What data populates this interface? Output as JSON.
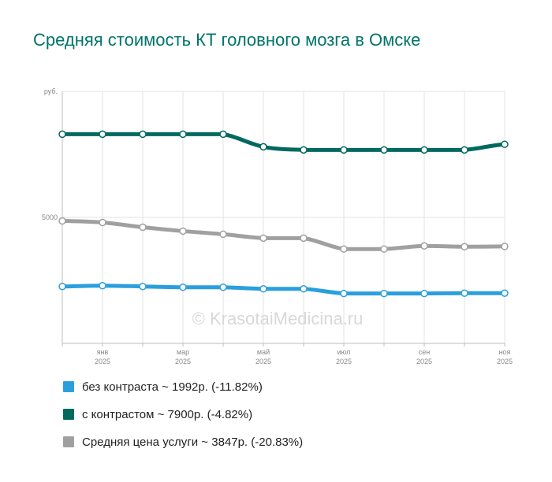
{
  "title": "Средняя стоимость КТ головного мозга в Омске",
  "watermark": "© KrasotaiMedicina.ru",
  "chart_data": {
    "type": "line",
    "ylabel": "руб.",
    "ylim": [
      0,
      10000
    ],
    "yticks": [
      {
        "value": 5000,
        "label": "5000"
      }
    ],
    "grid": true,
    "legend_position": "bottom",
    "x": [
      "дек 2024",
      "янв 2025",
      "фев 2025",
      "мар 2025",
      "апр 2025",
      "май 2025",
      "июн 2025",
      "июл 2025",
      "авг 2025",
      "сен 2025",
      "окт 2025",
      "ноя 2025"
    ],
    "xtick_labels": [
      {
        "index": 1,
        "month": "янв",
        "year": "2025"
      },
      {
        "index": 3,
        "month": "мар",
        "year": "2025"
      },
      {
        "index": 5,
        "month": "май",
        "year": "2025"
      },
      {
        "index": 7,
        "month": "июл",
        "year": "2025"
      },
      {
        "index": 9,
        "month": "сен",
        "year": "2025"
      },
      {
        "index": 11,
        "month": "ноя",
        "year": "2025"
      }
    ],
    "series": [
      {
        "key": "no_contrast",
        "color": "#2b9fde",
        "values": [
          2259,
          2290,
          2259,
          2228,
          2228,
          2166,
          2166,
          1981,
          1981,
          1981,
          1992,
          1992
        ]
      },
      {
        "key": "with_contrast",
        "color": "#00695f",
        "values": [
          8300,
          8300,
          8300,
          8300,
          8300,
          7800,
          7677,
          7677,
          7677,
          7677,
          7677,
          7900
        ]
      },
      {
        "key": "average",
        "color": "#a0a0a0",
        "values": [
          4858,
          4796,
          4610,
          4455,
          4331,
          4177,
          4177,
          3744,
          3744,
          3867,
          3836,
          3847
        ]
      }
    ]
  },
  "legend": [
    {
      "key": "no_contrast",
      "color": "#2b9fde",
      "label": "без контраста ~ 1992р. (-11.82%)"
    },
    {
      "key": "with_contrast",
      "color": "#00695f",
      "label": "с контрастом ~ 7900р. (-4.82%)"
    },
    {
      "key": "average",
      "color": "#a0a0a0",
      "label": "Средняя цена услуги ~ 3847р. (-20.83%)"
    }
  ]
}
